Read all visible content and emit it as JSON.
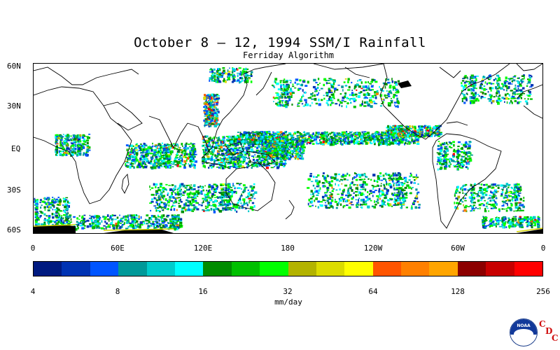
{
  "title": "October 8 – 12, 1994 SSM/I Rainfall",
  "subtitle": "Ferriday Algorithm",
  "lat_labels": [
    "60N",
    "30N",
    "EQ",
    "30S",
    "60S"
  ],
  "lon_labels": [
    "0",
    "60E",
    "120E",
    "180",
    "120W",
    "60W",
    "0"
  ],
  "colorbar": {
    "labels": [
      "4",
      "8",
      "16",
      "32",
      "64",
      "128",
      "256"
    ],
    "units": "mm/day",
    "colors": [
      "#001a80",
      "#0033b3",
      "#0055ff",
      "#009999",
      "#00cccc",
      "#00ffff",
      "#008c00",
      "#00c000",
      "#00ff00",
      "#b3b300",
      "#dcdc00",
      "#ffff00",
      "#ff5500",
      "#ff8000",
      "#ffa500",
      "#8c0000",
      "#c80000",
      "#ff0000"
    ]
  },
  "logo": {
    "noaa": "NOAA",
    "cdc": [
      "C",
      "D",
      "C"
    ]
  },
  "rain_colors": {
    "light": [
      "#0033b3",
      "#0055ff",
      "#009999",
      "#00cccc",
      "#00ffff"
    ],
    "medium": [
      "#008c00",
      "#00c000",
      "#00ff00"
    ],
    "heavy": [
      "#b3b300",
      "#dcdc00",
      "#ffff00",
      "#ff5500",
      "#ff8000",
      "#ff0000"
    ]
  }
}
